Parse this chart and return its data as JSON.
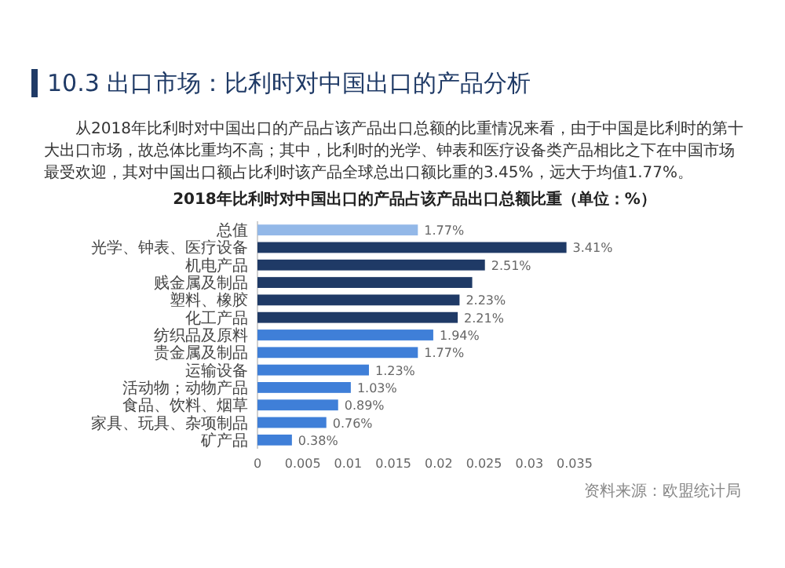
{
  "chart_data": {
    "type": "bar",
    "orientation": "horizontal",
    "title": "10.3 出口市场：比利时对中国出口的产品分析",
    "subtitle": "从2018年比利时对中国出口的产品占该产品出口总额的比重情况来看，由于中国是比利时的第十大出口市场，故总体比重均不高；其中，比利时的光学、钟表和医疗设备类产品相比之下在中国市场最受欢迎，其对中国出口额占比利时该产品全球总出口额比重的3.45%，远大于均值1.77%。",
    "annotations": [
      "2018年比利时对中国出口的产品占该产品出口总额比重（单位：%）",
      "资料来源：欧盟统计局"
    ],
    "categories": [
      "总值",
      "光学、钟表、医疗设备",
      "机电产品",
      "贱金属及制品",
      "塑料、橡胶",
      "化工产品",
      "纺织品及原料",
      "贵金属及制品",
      "运输设备",
      "活动物；动物产品",
      "食品、饮料、烟草",
      "家具、玩具、杂项制品",
      "矿产品"
    ],
    "values": [
      0.0177,
      0.0341,
      0.0251,
      0.0237,
      0.0223,
      0.0221,
      0.0194,
      0.0177,
      0.0123,
      0.0103,
      0.0089,
      0.0076,
      0.0038
    ],
    "value_labels": [
      "1.77%",
      "3.41%",
      "2.51%",
      null,
      "2.23%",
      "2.21%",
      "1.94%",
      "1.77%",
      "1.23%",
      "1.03%",
      "0.89%",
      "0.76%",
      "0.38%"
    ],
    "colors": [
      "#93b8e8",
      "#1f3a66",
      "#1f3a66",
      "#1f3a66",
      "#1f3a66",
      "#1f3a66",
      "#3f7fd8",
      "#3f7fd8",
      "#3f7fd8",
      "#3f7fd8",
      "#3f7fd8",
      "#3f7fd8",
      "#3f7fd8"
    ],
    "xlim": [
      0,
      0.035
    ],
    "xticks": [
      0,
      0.005,
      0.01,
      0.015,
      0.02,
      0.025,
      0.03,
      0.035
    ]
  }
}
